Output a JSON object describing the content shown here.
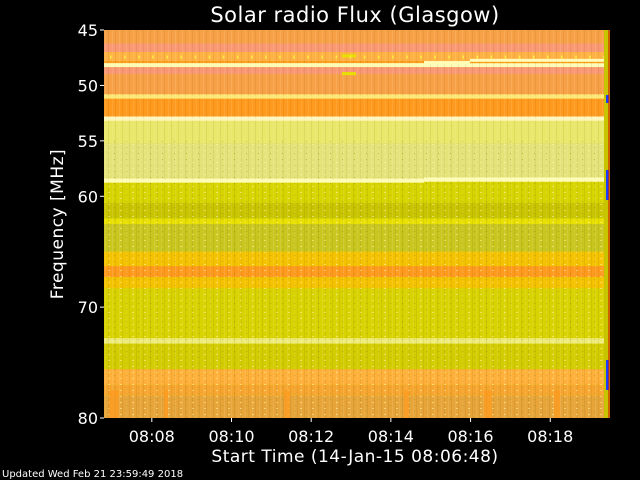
{
  "chart_data": {
    "type": "heatmap",
    "title": "Solar radio Flux (Glasgow)",
    "xlabel": "Start Time (14-Jan-15 08:06:48)",
    "ylabel": "Frequency [MHz]",
    "x_ticks": [
      "08:08",
      "08:10",
      "08:12",
      "08:14",
      "08:16",
      "08:18"
    ],
    "y_ticks": [
      45,
      50,
      55,
      60,
      70,
      80
    ],
    "y_range_mhz": [
      45,
      80
    ],
    "x_range": [
      "08:06:48",
      "08:19:30"
    ],
    "colors": {
      "background": "#000000",
      "text": "#ffffff",
      "orange": "#f7a046",
      "salmon": "#f99872",
      "deep_orange": "#ff9a1e",
      "yellow": "#e8e000",
      "pale_yellow": "#e9e86a",
      "olive": "#c8c400",
      "bright_line": "#fffcb8"
    },
    "bands": [
      {
        "from": 45,
        "to": 46.2,
        "color": "#f7a046"
      },
      {
        "from": 46.2,
        "to": 47.0,
        "color": "#f99872"
      },
      {
        "from": 47.0,
        "to": 47.8,
        "color": "#ffb243"
      },
      {
        "from": 47.8,
        "to": 48.0,
        "color": "#ff9a1e"
      },
      {
        "from": 48.0,
        "to": 48.35,
        "color": "#fffcb8"
      },
      {
        "from": 48.35,
        "to": 49.0,
        "color": "#f99872"
      },
      {
        "from": 49.0,
        "to": 50.8,
        "color": "#f7a046"
      },
      {
        "from": 50.8,
        "to": 51.2,
        "color": "#fde67a"
      },
      {
        "from": 51.2,
        "to": 52.8,
        "color": "#ff9a1e"
      },
      {
        "from": 52.8,
        "to": 53.1,
        "color": "#fff6c0"
      },
      {
        "from": 53.1,
        "to": 55.2,
        "color": "#e9e86a"
      },
      {
        "from": 55.2,
        "to": 58.4,
        "color": "#e3e37a"
      },
      {
        "from": 58.4,
        "to": 58.7,
        "color": "#fffcb8"
      },
      {
        "from": 58.7,
        "to": 60.6,
        "color": "#d7d400"
      },
      {
        "from": 60.6,
        "to": 62.0,
        "color": "#c8c400"
      },
      {
        "from": 62.0,
        "to": 62.5,
        "color": "#e8e000"
      },
      {
        "from": 62.5,
        "to": 65.0,
        "color": "#c9c620"
      },
      {
        "from": 65.0,
        "to": 66.3,
        "color": "#f5c200"
      },
      {
        "from": 66.3,
        "to": 67.3,
        "color": "#ff9a1e"
      },
      {
        "from": 67.3,
        "to": 68.3,
        "color": "#f5c200"
      },
      {
        "from": 68.3,
        "to": 72.8,
        "color": "#d8d200"
      },
      {
        "from": 72.8,
        "to": 73.3,
        "color": "#efeb7a"
      },
      {
        "from": 73.3,
        "to": 75.6,
        "color": "#d2cc00"
      },
      {
        "from": 75.6,
        "to": 77.0,
        "color": "#ffb03a"
      },
      {
        "from": 77.0,
        "to": 78.0,
        "color": "#f6a62e"
      },
      {
        "from": 78.0,
        "to": 80.0,
        "color": "#e7a438"
      }
    ]
  },
  "footer": {
    "updated": "Updated Wed Feb 21 23:59:49 2018"
  }
}
